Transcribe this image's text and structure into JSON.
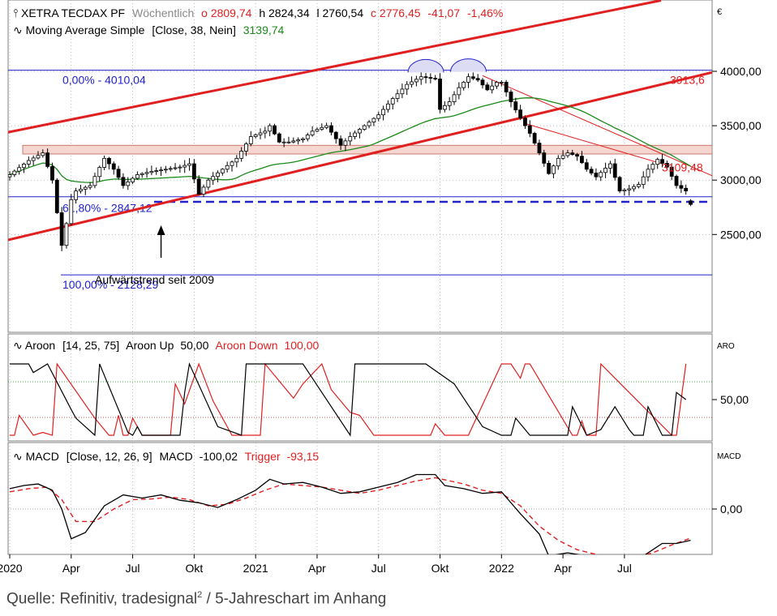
{
  "caption": {
    "prefix": "Quelle: Refinitiv, tradesignal",
    "superscript": "2",
    "suffix": " / 5-Jahreschart im Anhang"
  },
  "colors": {
    "candle": "#000000",
    "sma": "#1a8a1a",
    "trend": "#e02020",
    "fib": "#2222cc",
    "aroon_up": "#000000",
    "aroon_down": "#e02020",
    "macd": "#000000",
    "trigger": "#e02020",
    "grid": "#a0a0a0",
    "zone": "#f5d6d0"
  },
  "chart_data": [
    {
      "type": "candlestick",
      "panel": "price",
      "header": {
        "instrument": "XETRA TECDAX PF",
        "period": "Wöchentlich",
        "open": "o 2809,74",
        "high": "h 2824,34",
        "low": "l 2760,54",
        "close": "c 2776,45",
        "change": "-41,07",
        "change_pct": "-1,46%",
        "indicator": "Moving Average Simple",
        "indicator_params": "[Close, 38, Nein]",
        "indicator_value": "3139,74"
      },
      "currency_label": "€",
      "y_axis": {
        "ticks": [
          2500,
          3000,
          3500,
          4000
        ],
        "tick_labels": [
          "2500,00",
          "3000,00",
          "3500,00",
          "4000,00"
        ],
        "range": [
          2000,
          4600
        ]
      },
      "x_axis": {
        "tick_labels": [
          "2020",
          "Apr",
          "Jul",
          "Okt",
          "2021",
          "Apr",
          "Jul",
          "Okt",
          "2022",
          "Apr",
          "Jul"
        ],
        "tick_weeks": [
          0,
          13,
          26,
          39,
          52,
          65,
          78,
          91,
          104,
          117,
          130
        ],
        "week_range": [
          0,
          148
        ]
      },
      "anchors_close": [
        [
          0,
          3050
        ],
        [
          4,
          3180
        ],
        [
          7,
          3250
        ],
        [
          9,
          3000
        ],
        [
          10,
          2700
        ],
        [
          11,
          2400
        ],
        [
          12,
          2600
        ],
        [
          13,
          2820
        ],
        [
          14,
          2900
        ],
        [
          17,
          2950
        ],
        [
          20,
          3200
        ],
        [
          22,
          3100
        ],
        [
          24,
          2950
        ],
        [
          27,
          3050
        ],
        [
          30,
          3080
        ],
        [
          33,
          3100
        ],
        [
          36,
          3120
        ],
        [
          38,
          3150
        ],
        [
          40,
          2870
        ],
        [
          42,
          3000
        ],
        [
          45,
          3100
        ],
        [
          48,
          3200
        ],
        [
          51,
          3400
        ],
        [
          54,
          3450
        ],
        [
          55,
          3500
        ],
        [
          57,
          3350
        ],
        [
          59,
          3350
        ],
        [
          62,
          3380
        ],
        [
          64,
          3450
        ],
        [
          67,
          3500
        ],
        [
          70,
          3320
        ],
        [
          72,
          3400
        ],
        [
          75,
          3500
        ],
        [
          78,
          3600
        ],
        [
          81,
          3750
        ],
        [
          84,
          3880
        ],
        [
          87,
          3950
        ],
        [
          90,
          3930
        ],
        [
          91,
          3650
        ],
        [
          93,
          3720
        ],
        [
          95,
          3850
        ],
        [
          97,
          3950
        ],
        [
          99,
          3920
        ],
        [
          101,
          3830
        ],
        [
          103,
          3900
        ],
        [
          104,
          3900
        ],
        [
          106,
          3720
        ],
        [
          108,
          3570
        ],
        [
          110,
          3430
        ],
        [
          112,
          3250
        ],
        [
          114,
          3060
        ],
        [
          116,
          3200
        ],
        [
          118,
          3250
        ],
        [
          120,
          3220
        ],
        [
          122,
          3100
        ],
        [
          124,
          3030
        ],
        [
          127,
          3150
        ],
        [
          129,
          2900
        ],
        [
          131,
          2920
        ],
        [
          133,
          2960
        ],
        [
          135,
          3100
        ],
        [
          137,
          3190
        ],
        [
          139,
          3120
        ],
        [
          141,
          2950
        ],
        [
          143,
          2900
        ],
        [
          144,
          2780
        ]
      ],
      "last_candle": {
        "open": 2809.74,
        "high": 2824.34,
        "low": 2760.54,
        "close": 2776.45
      },
      "annotations": {
        "fib_0": {
          "label": "0,00% - 4010,04",
          "value": 4010.04
        },
        "fib_618": {
          "label": "61,80% - 2847,12",
          "value": 2847.12
        },
        "fib_100": {
          "label": "100,00% - 2128,29",
          "value": 2128.29
        },
        "support_dashed": 2800,
        "upper_channel_label": "3913,6",
        "downtrend_label": "3109,48",
        "trend_text": "Aufwärtstrend seit 2009"
      }
    },
    {
      "type": "line",
      "panel": "aroon",
      "header": {
        "indicator": "Aroon",
        "params": "[14, 25, 75]",
        "up_label": "Aroon Up",
        "up_value": "50,00",
        "down_label": "Aroon Down",
        "down_value": "100,00"
      },
      "corner_label": "ARO",
      "y_axis": {
        "ticks": [
          50
        ],
        "tick_labels": [
          "50,00"
        ],
        "range": [
          -8,
          110
        ],
        "reference_lines": [
          25,
          75
        ]
      },
      "series": [
        {
          "name": "Aroon Up",
          "points": [
            [
              0,
              100
            ],
            [
              4,
              100
            ],
            [
              5,
              88
            ],
            [
              8,
              100
            ],
            [
              13,
              36
            ],
            [
              14,
              24
            ],
            [
              18,
              0
            ],
            [
              19,
              100
            ],
            [
              25,
              4
            ],
            [
              26,
              0
            ],
            [
              27,
              12
            ],
            [
              28,
              0
            ],
            [
              36,
              0
            ],
            [
              37,
              60
            ],
            [
              38,
              100
            ],
            [
              44,
              12
            ],
            [
              49,
              0
            ],
            [
              50,
              100
            ],
            [
              62,
              100
            ],
            [
              72,
              0
            ],
            [
              73,
              100
            ],
            [
              88,
              100
            ],
            [
              94,
              72
            ],
            [
              100,
              12
            ],
            [
              104,
              0
            ],
            [
              106,
              0
            ],
            [
              107,
              24
            ],
            [
              110,
              0
            ],
            [
              114,
              0
            ],
            [
              118,
              0
            ],
            [
              119,
              40
            ],
            [
              122,
              0
            ],
            [
              125,
              8
            ],
            [
              128,
              40
            ],
            [
              131,
              8
            ],
            [
              132,
              0
            ],
            [
              134,
              0
            ],
            [
              135,
              40
            ],
            [
              138,
              0
            ],
            [
              140,
              0
            ],
            [
              141,
              60
            ],
            [
              143,
              50
            ]
          ]
        },
        {
          "name": "Aroon Down",
          "points": [
            [
              0,
              0
            ],
            [
              1,
              0
            ],
            [
              2,
              28
            ],
            [
              5,
              0
            ],
            [
              7,
              4
            ],
            [
              9,
              0
            ],
            [
              10,
              100
            ],
            [
              18,
              24
            ],
            [
              21,
              0
            ],
            [
              22,
              0
            ],
            [
              23,
              28
            ],
            [
              24,
              0
            ],
            [
              25,
              0
            ],
            [
              26,
              24
            ],
            [
              28,
              0
            ],
            [
              34,
              0
            ],
            [
              35,
              72
            ],
            [
              37,
              44
            ],
            [
              40,
              100
            ],
            [
              43,
              48
            ],
            [
              47,
              0
            ],
            [
              53,
              0
            ],
            [
              54,
              100
            ],
            [
              57,
              76
            ],
            [
              60,
              52
            ],
            [
              62,
              72
            ],
            [
              66,
              100
            ],
            [
              68,
              64
            ],
            [
              71,
              40
            ],
            [
              72,
              32
            ],
            [
              74,
              28
            ],
            [
              77,
              0
            ],
            [
              81,
              0
            ],
            [
              86,
              0
            ],
            [
              89,
              0
            ],
            [
              90,
              16
            ],
            [
              92,
              0
            ],
            [
              97,
              0
            ],
            [
              104,
              100
            ],
            [
              106,
              100
            ],
            [
              108,
              80
            ],
            [
              109,
              100
            ],
            [
              110,
              100
            ],
            [
              119,
              0
            ],
            [
              120,
              0
            ],
            [
              121,
              20
            ],
            [
              122,
              0
            ],
            [
              123,
              0
            ],
            [
              124,
              0
            ],
            [
              125,
              100
            ],
            [
              140,
              0
            ],
            [
              141,
              0
            ],
            [
              143,
              100
            ]
          ]
        }
      ]
    },
    {
      "type": "line",
      "panel": "macd",
      "header": {
        "indicator": "MACD",
        "params": "[Close, 12, 26, 9]",
        "macd_label": "MACD",
        "macd_value": "-100,02",
        "trigger_label": "Trigger",
        "trigger_value": "-93,15"
      },
      "corner_label": "MACD",
      "y_axis": {
        "ticks": [
          0
        ],
        "tick_labels": [
          "0,00"
        ],
        "range": [
          -175,
          155
        ],
        "reference_lines": [
          0
        ]
      },
      "series": [
        {
          "name": "MACD",
          "points": [
            [
              0,
              65
            ],
            [
              3,
              75
            ],
            [
              6,
              80
            ],
            [
              9,
              60
            ],
            [
              11,
              0
            ],
            [
              13,
              -95
            ],
            [
              16,
              -75
            ],
            [
              20,
              10
            ],
            [
              24,
              45
            ],
            [
              28,
              35
            ],
            [
              32,
              45
            ],
            [
              36,
              28
            ],
            [
              40,
              20
            ],
            [
              44,
              5
            ],
            [
              48,
              30
            ],
            [
              52,
              60
            ],
            [
              55,
              95
            ],
            [
              58,
              80
            ],
            [
              62,
              85
            ],
            [
              66,
              70
            ],
            [
              70,
              50
            ],
            [
              74,
              55
            ],
            [
              78,
              70
            ],
            [
              82,
              85
            ],
            [
              86,
              110
            ],
            [
              90,
              110
            ],
            [
              92,
              75
            ],
            [
              96,
              65
            ],
            [
              100,
              50
            ],
            [
              104,
              55
            ],
            [
              108,
              -15
            ],
            [
              112,
              -80
            ],
            [
              114,
              -150
            ],
            [
              118,
              -140
            ],
            [
              122,
              -150
            ],
            [
              126,
              -155
            ],
            [
              130,
              -165
            ],
            [
              134,
              -150
            ],
            [
              138,
              -110
            ],
            [
              141,
              -110
            ],
            [
              144,
              -100
            ]
          ]
        },
        {
          "name": "Trigger",
          "points": [
            [
              0,
              55
            ],
            [
              4,
              65
            ],
            [
              8,
              70
            ],
            [
              11,
              30
            ],
            [
              14,
              -40
            ],
            [
              18,
              -40
            ],
            [
              22,
              0
            ],
            [
              26,
              30
            ],
            [
              30,
              32
            ],
            [
              34,
              38
            ],
            [
              38,
              30
            ],
            [
              42,
              10
            ],
            [
              46,
              15
            ],
            [
              50,
              35
            ],
            [
              54,
              60
            ],
            [
              58,
              80
            ],
            [
              62,
              75
            ],
            [
              66,
              70
            ],
            [
              70,
              60
            ],
            [
              74,
              50
            ],
            [
              78,
              60
            ],
            [
              82,
              75
            ],
            [
              86,
              90
            ],
            [
              90,
              100
            ],
            [
              93,
              90
            ],
            [
              96,
              80
            ],
            [
              100,
              60
            ],
            [
              104,
              50
            ],
            [
              108,
              10
            ],
            [
              112,
              -55
            ],
            [
              116,
              -100
            ],
            [
              120,
              -130
            ],
            [
              124,
              -145
            ],
            [
              128,
              -155
            ],
            [
              132,
              -155
            ],
            [
              136,
              -140
            ],
            [
              140,
              -115
            ],
            [
              144,
              -93
            ]
          ]
        }
      ]
    }
  ]
}
